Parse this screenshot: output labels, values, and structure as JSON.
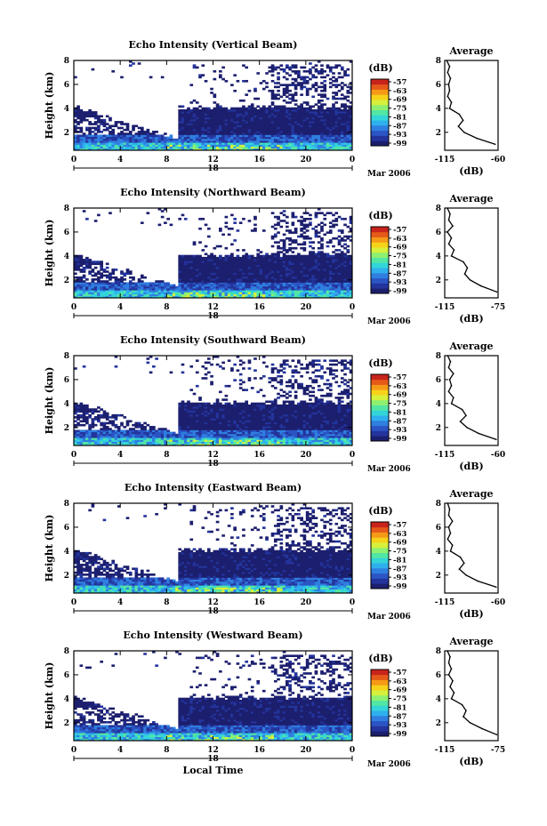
{
  "x_axis_label": "Local Time",
  "date_label": "Mar 2006",
  "day_label": "18",
  "colorbar_unit": "(dB)",
  "colorbar_ticks": [
    "-57",
    "-63",
    "-69",
    "-75",
    "-81",
    "-87",
    "-93",
    "-99"
  ],
  "colormap": [
    "#1c1f6e",
    "#23349c",
    "#2b54c4",
    "#2f7fe0",
    "#2fb0ee",
    "#33d5d9",
    "#52e6a4",
    "#8ef071",
    "#d6f03b",
    "#f6d21a",
    "#f59a17",
    "#e65a19",
    "#c8241c"
  ],
  "chart_data": [
    {
      "type": "heatmap",
      "title": "Echo Intensity (Vertical Beam)",
      "ylabel": "Height (km)",
      "xlabel": "",
      "x_ticks": [
        "0",
        "4",
        "8",
        "12",
        "16",
        "20",
        "0"
      ],
      "y_ticks": [
        "2",
        "4",
        "6",
        "8"
      ],
      "xlim": [
        0,
        24
      ],
      "ylim": [
        0.5,
        8
      ],
      "color_range_dB": [
        -99,
        -57
      ],
      "profile": {
        "title": "Average",
        "xlabel": "(dB)",
        "xlim": [
          -115,
          -60
        ],
        "x_ticks": [
          "-115",
          "-60"
        ],
        "height_km": [
          8,
          7.5,
          7,
          6.5,
          6,
          5.5,
          5,
          4.5,
          4,
          3.5,
          3,
          2.5,
          2,
          1.5,
          1
        ],
        "values_dB": [
          -113,
          -110,
          -112,
          -109,
          -111,
          -110,
          -112,
          -108,
          -110,
          -100,
          -96,
          -101,
          -95,
          -82,
          -63
        ]
      }
    },
    {
      "type": "heatmap",
      "title": "Echo Intensity (Northward Beam)",
      "ylabel": "Height (km)",
      "xlabel": "",
      "x_ticks": [
        "0",
        "4",
        "8",
        "12",
        "16",
        "20",
        "0"
      ],
      "y_ticks": [
        "2",
        "4",
        "6",
        "8"
      ],
      "xlim": [
        0,
        24
      ],
      "ylim": [
        0.5,
        8
      ],
      "color_range_dB": [
        -99,
        -57
      ],
      "profile": {
        "title": "Average",
        "xlabel": "(dB)",
        "xlim": [
          -115,
          -75
        ],
        "x_ticks": [
          "-115",
          "-75"
        ],
        "height_km": [
          8,
          7.5,
          7,
          6.5,
          6,
          5.5,
          5,
          4.5,
          4,
          3.5,
          3,
          2.5,
          2,
          1.5,
          1
        ],
        "values_dB": [
          -113,
          -111,
          -112,
          -109,
          -113,
          -110,
          -112,
          -108,
          -110,
          -101,
          -98,
          -100,
          -96,
          -88,
          -76
        ]
      }
    },
    {
      "type": "heatmap",
      "title": "Echo Intensity (Southward Beam)",
      "ylabel": "Height (km)",
      "xlabel": "",
      "x_ticks": [
        "0",
        "4",
        "8",
        "12",
        "16",
        "20",
        "0"
      ],
      "y_ticks": [
        "2",
        "4",
        "6",
        "8"
      ],
      "xlim": [
        0,
        24
      ],
      "ylim": [
        0.5,
        8
      ],
      "color_range_dB": [
        -99,
        -57
      ],
      "profile": {
        "title": "Average",
        "xlabel": "(dB)",
        "xlim": [
          -115,
          -60
        ],
        "x_ticks": [
          "-115",
          "-60"
        ],
        "height_km": [
          8,
          7.5,
          7,
          6.5,
          6,
          5.5,
          5,
          4.5,
          4,
          3.5,
          3,
          2.5,
          2,
          1.5,
          1
        ],
        "values_dB": [
          -112,
          -109,
          -111,
          -106,
          -110,
          -108,
          -111,
          -106,
          -108,
          -97,
          -93,
          -99,
          -92,
          -80,
          -62
        ]
      }
    },
    {
      "type": "heatmap",
      "title": "Echo Intensity (Eastward Beam)",
      "ylabel": "Height (km)",
      "xlabel": "",
      "x_ticks": [
        "0",
        "4",
        "8",
        "12",
        "16",
        "20",
        "0"
      ],
      "y_ticks": [
        "2",
        "4",
        "6",
        "8"
      ],
      "xlim": [
        0,
        24
      ],
      "ylim": [
        0.5,
        8
      ],
      "color_range_dB": [
        -99,
        -57
      ],
      "profile": {
        "title": "Average",
        "xlabel": "(dB)",
        "xlim": [
          -115,
          -60
        ],
        "x_ticks": [
          "-115",
          "-60"
        ],
        "height_km": [
          8,
          7.5,
          7,
          6.5,
          6,
          5.5,
          5,
          4.5,
          4,
          3.5,
          3,
          2.5,
          2,
          1.5,
          1
        ],
        "values_dB": [
          -112,
          -110,
          -111,
          -107,
          -111,
          -109,
          -112,
          -107,
          -109,
          -99,
          -95,
          -100,
          -93,
          -81,
          -62
        ]
      }
    },
    {
      "type": "heatmap",
      "title": "Echo Intensity (Westward Beam)",
      "ylabel": "Height (km)",
      "xlabel": "Local Time",
      "x_ticks": [
        "0",
        "4",
        "8",
        "12",
        "16",
        "20",
        "0"
      ],
      "y_ticks": [
        "2",
        "4",
        "6",
        "8"
      ],
      "xlim": [
        0,
        24
      ],
      "ylim": [
        0.5,
        8
      ],
      "color_range_dB": [
        -99,
        -57
      ],
      "profile": {
        "title": "Average",
        "xlabel": "(dB)",
        "xlim": [
          -115,
          -75
        ],
        "x_ticks": [
          "-115",
          "-75"
        ],
        "height_km": [
          8,
          7.5,
          7,
          6.5,
          6,
          5.5,
          5,
          4.5,
          4,
          3.5,
          3,
          2.5,
          2,
          1.5,
          1
        ],
        "values_dB": [
          -113,
          -111,
          -112,
          -110,
          -112,
          -109,
          -111,
          -108,
          -110,
          -102,
          -99,
          -101,
          -96,
          -87,
          -76
        ]
      }
    }
  ]
}
